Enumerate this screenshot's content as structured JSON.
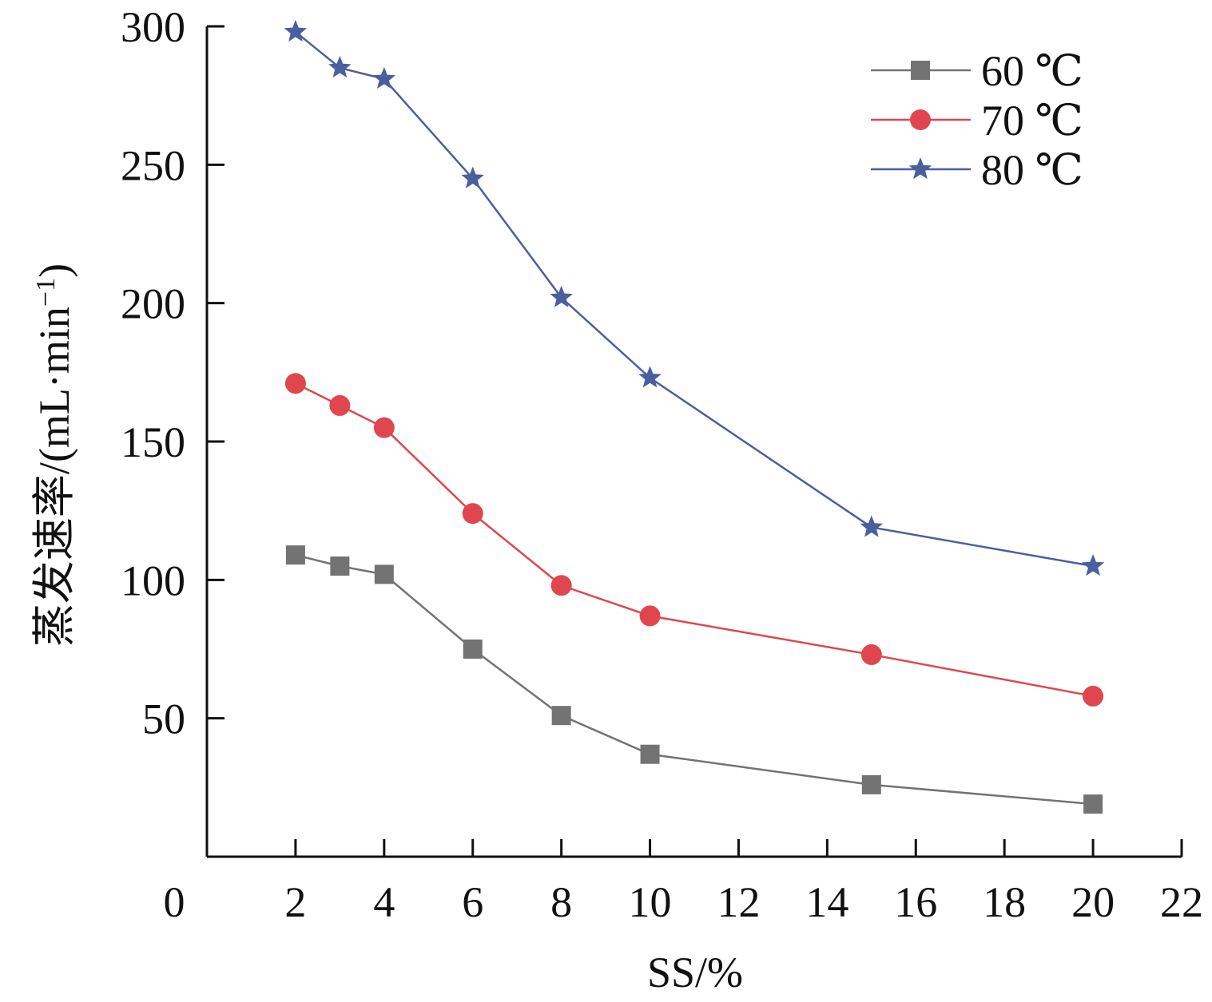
{
  "chart_data": {
    "type": "line",
    "xlabel": "SS/%",
    "ylabel": "蒸发速率/(mL·min",
    "ylabel_sup": "−1",
    "ylabel_close": ")",
    "xlim": [
      0,
      22
    ],
    "ylim": [
      0,
      300
    ],
    "x_ticks": [
      0,
      2,
      4,
      6,
      8,
      10,
      12,
      14,
      16,
      18,
      20,
      22
    ],
    "y_ticks": [
      50,
      100,
      150,
      200,
      250,
      300
    ],
    "grid": false,
    "legend": "top-right",
    "x": [
      2,
      3,
      4,
      6,
      8,
      10,
      15,
      20
    ],
    "series": [
      {
        "name": "60 ℃",
        "marker": "square",
        "color": "#737373",
        "values": [
          109,
          105,
          102,
          75,
          51,
          37,
          26,
          19
        ]
      },
      {
        "name": "70 ℃",
        "marker": "circle",
        "color": "#e0464e",
        "values": [
          171,
          163,
          155,
          124,
          98,
          87,
          73,
          58
        ]
      },
      {
        "name": "80 ℃",
        "marker": "star",
        "color": "#4a5fa0",
        "values": [
          298,
          285,
          281,
          245,
          202,
          173,
          119,
          105
        ]
      }
    ]
  }
}
